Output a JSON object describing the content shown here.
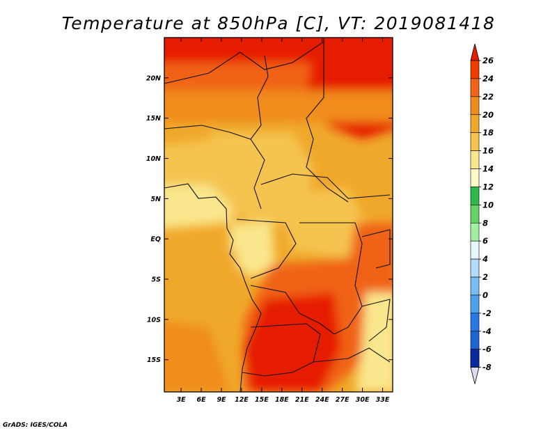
{
  "title": "Temperature at 850hPa [C], VT: 2019081418",
  "credit": "GrADS: IGES/COLA",
  "chart_data": {
    "type": "heatmap",
    "title": "Temperature at 850hPa [C], VT: 2019081418",
    "xlabel": "",
    "ylabel": "",
    "x_ticks": [
      "3E",
      "6E",
      "9E",
      "12E",
      "15E",
      "18E",
      "21E",
      "24E",
      "27E",
      "30E",
      "33E"
    ],
    "y_ticks": [
      "20N",
      "15N",
      "10N",
      "5N",
      "EQ",
      "5S",
      "10S",
      "15S"
    ],
    "lon_range": [
      0.5,
      34.5
    ],
    "lat_range": [
      -19,
      25
    ],
    "colorbar": {
      "labels": [
        "26",
        "24",
        "22",
        "20",
        "18",
        "16",
        "14",
        "12",
        "10",
        "8",
        "6",
        "4",
        "2",
        "0",
        "-2",
        "-4",
        "-6",
        "-8"
      ],
      "levels": [
        26,
        24,
        22,
        20,
        18,
        16,
        14,
        12,
        10,
        8,
        6,
        4,
        2,
        0,
        -2,
        -4,
        -6,
        -8
      ],
      "colors": [
        "#f03c00",
        "#f06418",
        "#f08c1e",
        "#f0a82a",
        "#f5c450",
        "#fae68c",
        "#fffac8",
        "#2fb84a",
        "#64d464",
        "#a0f0a0",
        "#e8f8ff",
        "#b4dcfa",
        "#78bef0",
        "#50a0f0",
        "#2878e6",
        "#1e64d2",
        "#0f46be",
        "#0a28a0"
      ],
      "top_color": "#e61e00",
      "bottom_color": "#dcdcf5"
    },
    "grid": false,
    "legend_position": "right"
  }
}
